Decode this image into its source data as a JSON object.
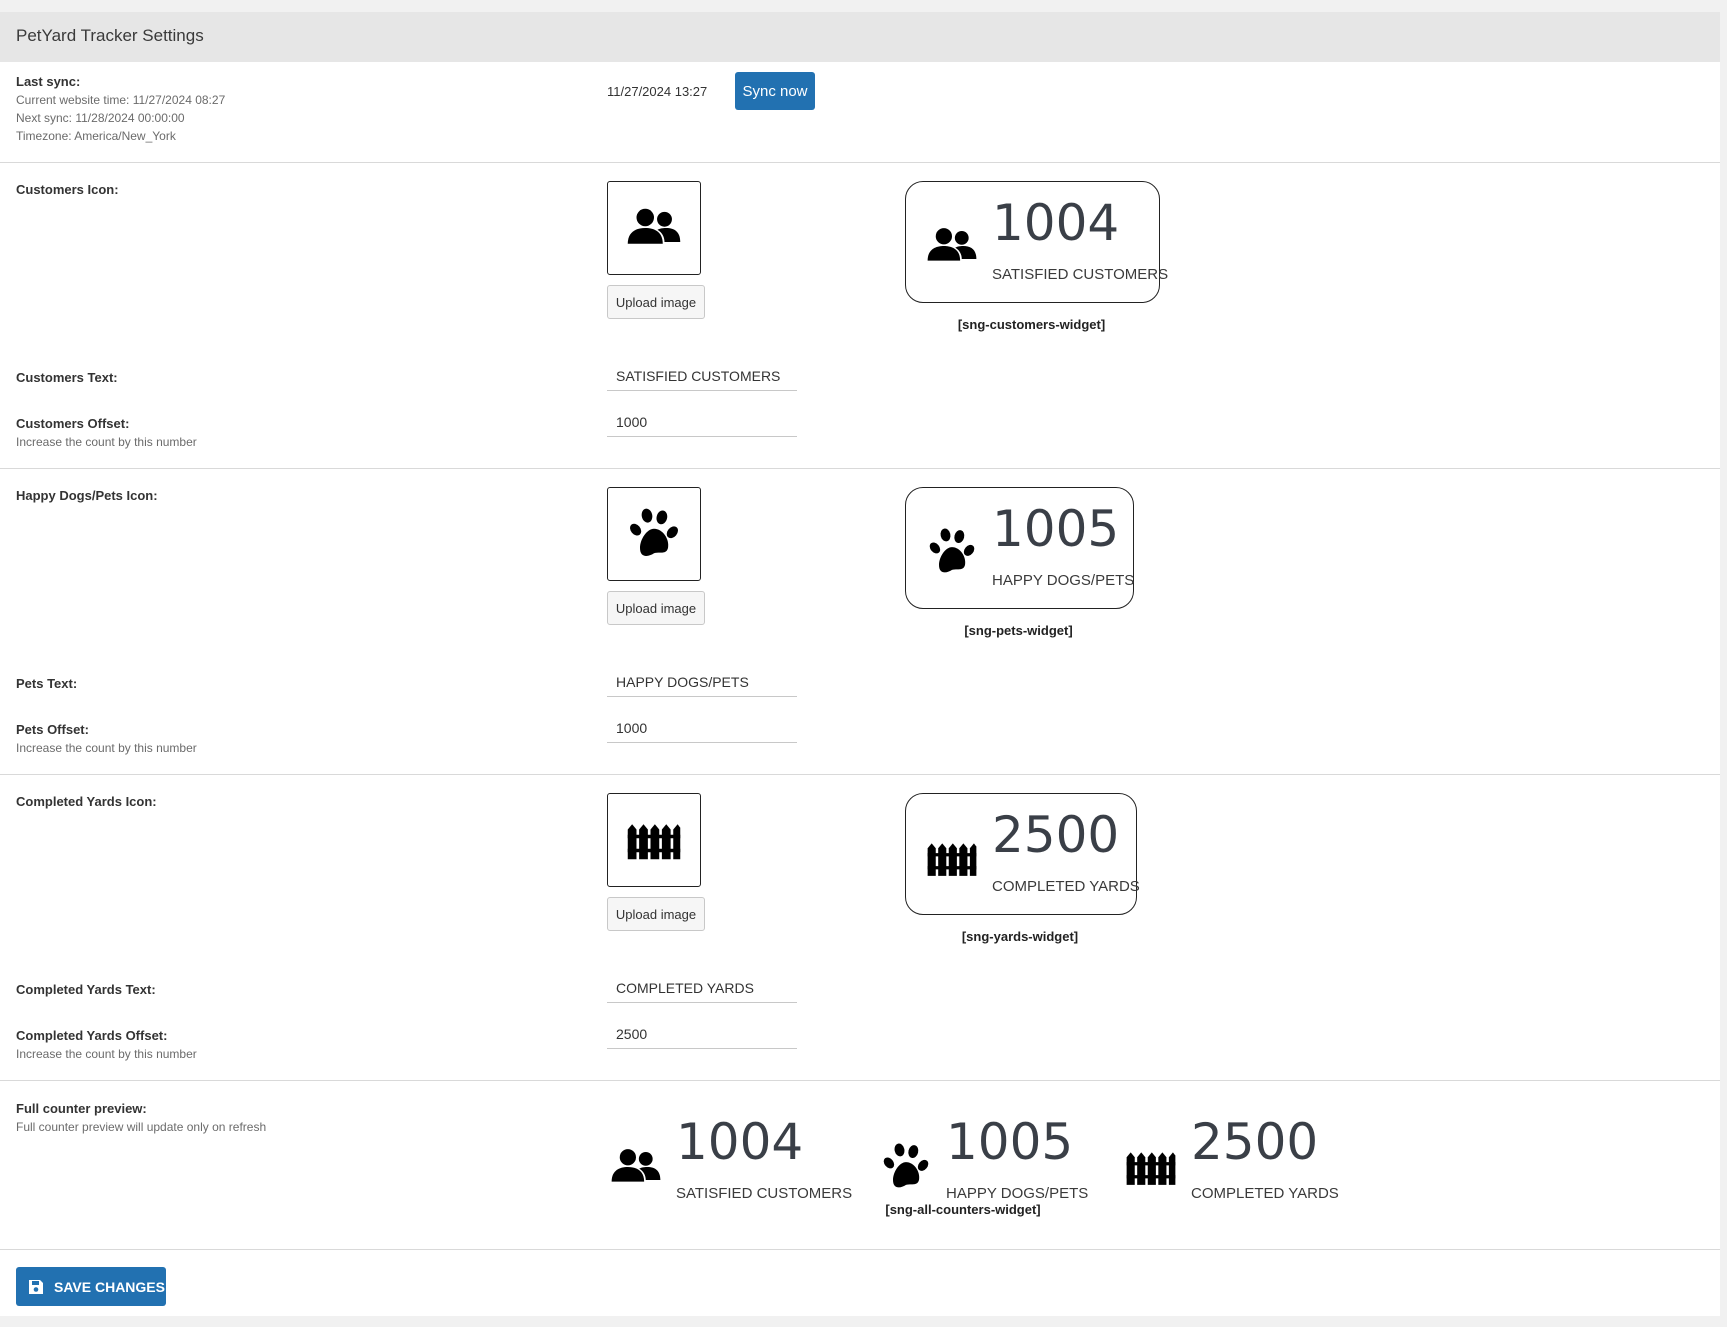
{
  "header": {
    "title": "PetYard Tracker Settings"
  },
  "sync": {
    "label": "Last sync:",
    "current_time": "Current website time: 11/27/2024 08:27",
    "next_sync": "Next sync: 11/28/2024 00:00:00",
    "timezone": "Timezone: America/New_York",
    "last_sync_value": "11/27/2024 13:27",
    "button": "Sync now"
  },
  "customers": {
    "icon_label": "Customers Icon:",
    "icon": "users-icon",
    "upload": "Upload image",
    "count": "1004",
    "text_label": "Customers Text:",
    "text_value": "SATISFIED CUSTOMERS",
    "offset_label": "Customers Offset:",
    "offset_hint": "Increase the count by this number",
    "offset_value": "1000",
    "shortcode": "[sng-customers-widget]"
  },
  "pets": {
    "icon_label": "Happy Dogs/Pets Icon:",
    "icon": "paw-icon",
    "upload": "Upload image",
    "count": "1005",
    "text_label": "Pets Text:",
    "text_value": "HAPPY DOGS/PETS",
    "offset_label": "Pets Offset:",
    "offset_hint": "Increase the count by this number",
    "offset_value": "1000",
    "shortcode": "[sng-pets-widget]"
  },
  "yards": {
    "icon_label": "Completed Yards Icon:",
    "icon": "fence-icon",
    "upload": "Upload image",
    "count": "2500",
    "text_label": "Completed Yards Text:",
    "text_value": "COMPLETED YARDS",
    "offset_label": "Completed Yards Offset:",
    "offset_hint": "Increase the count by this number",
    "offset_value": "2500",
    "shortcode": "[sng-yards-widget]"
  },
  "full_preview": {
    "label": "Full counter preview:",
    "hint": "Full counter preview will update only on refresh",
    "shortcode": "[sng-all-counters-widget]"
  },
  "footer": {
    "save": "SAVE CHANGES",
    "save_icon": "floppy-disk-icon"
  },
  "colors": {
    "primary": "#2271b1",
    "header_bg": "#e6e6e6",
    "page_bg": "#f1f1f1"
  }
}
